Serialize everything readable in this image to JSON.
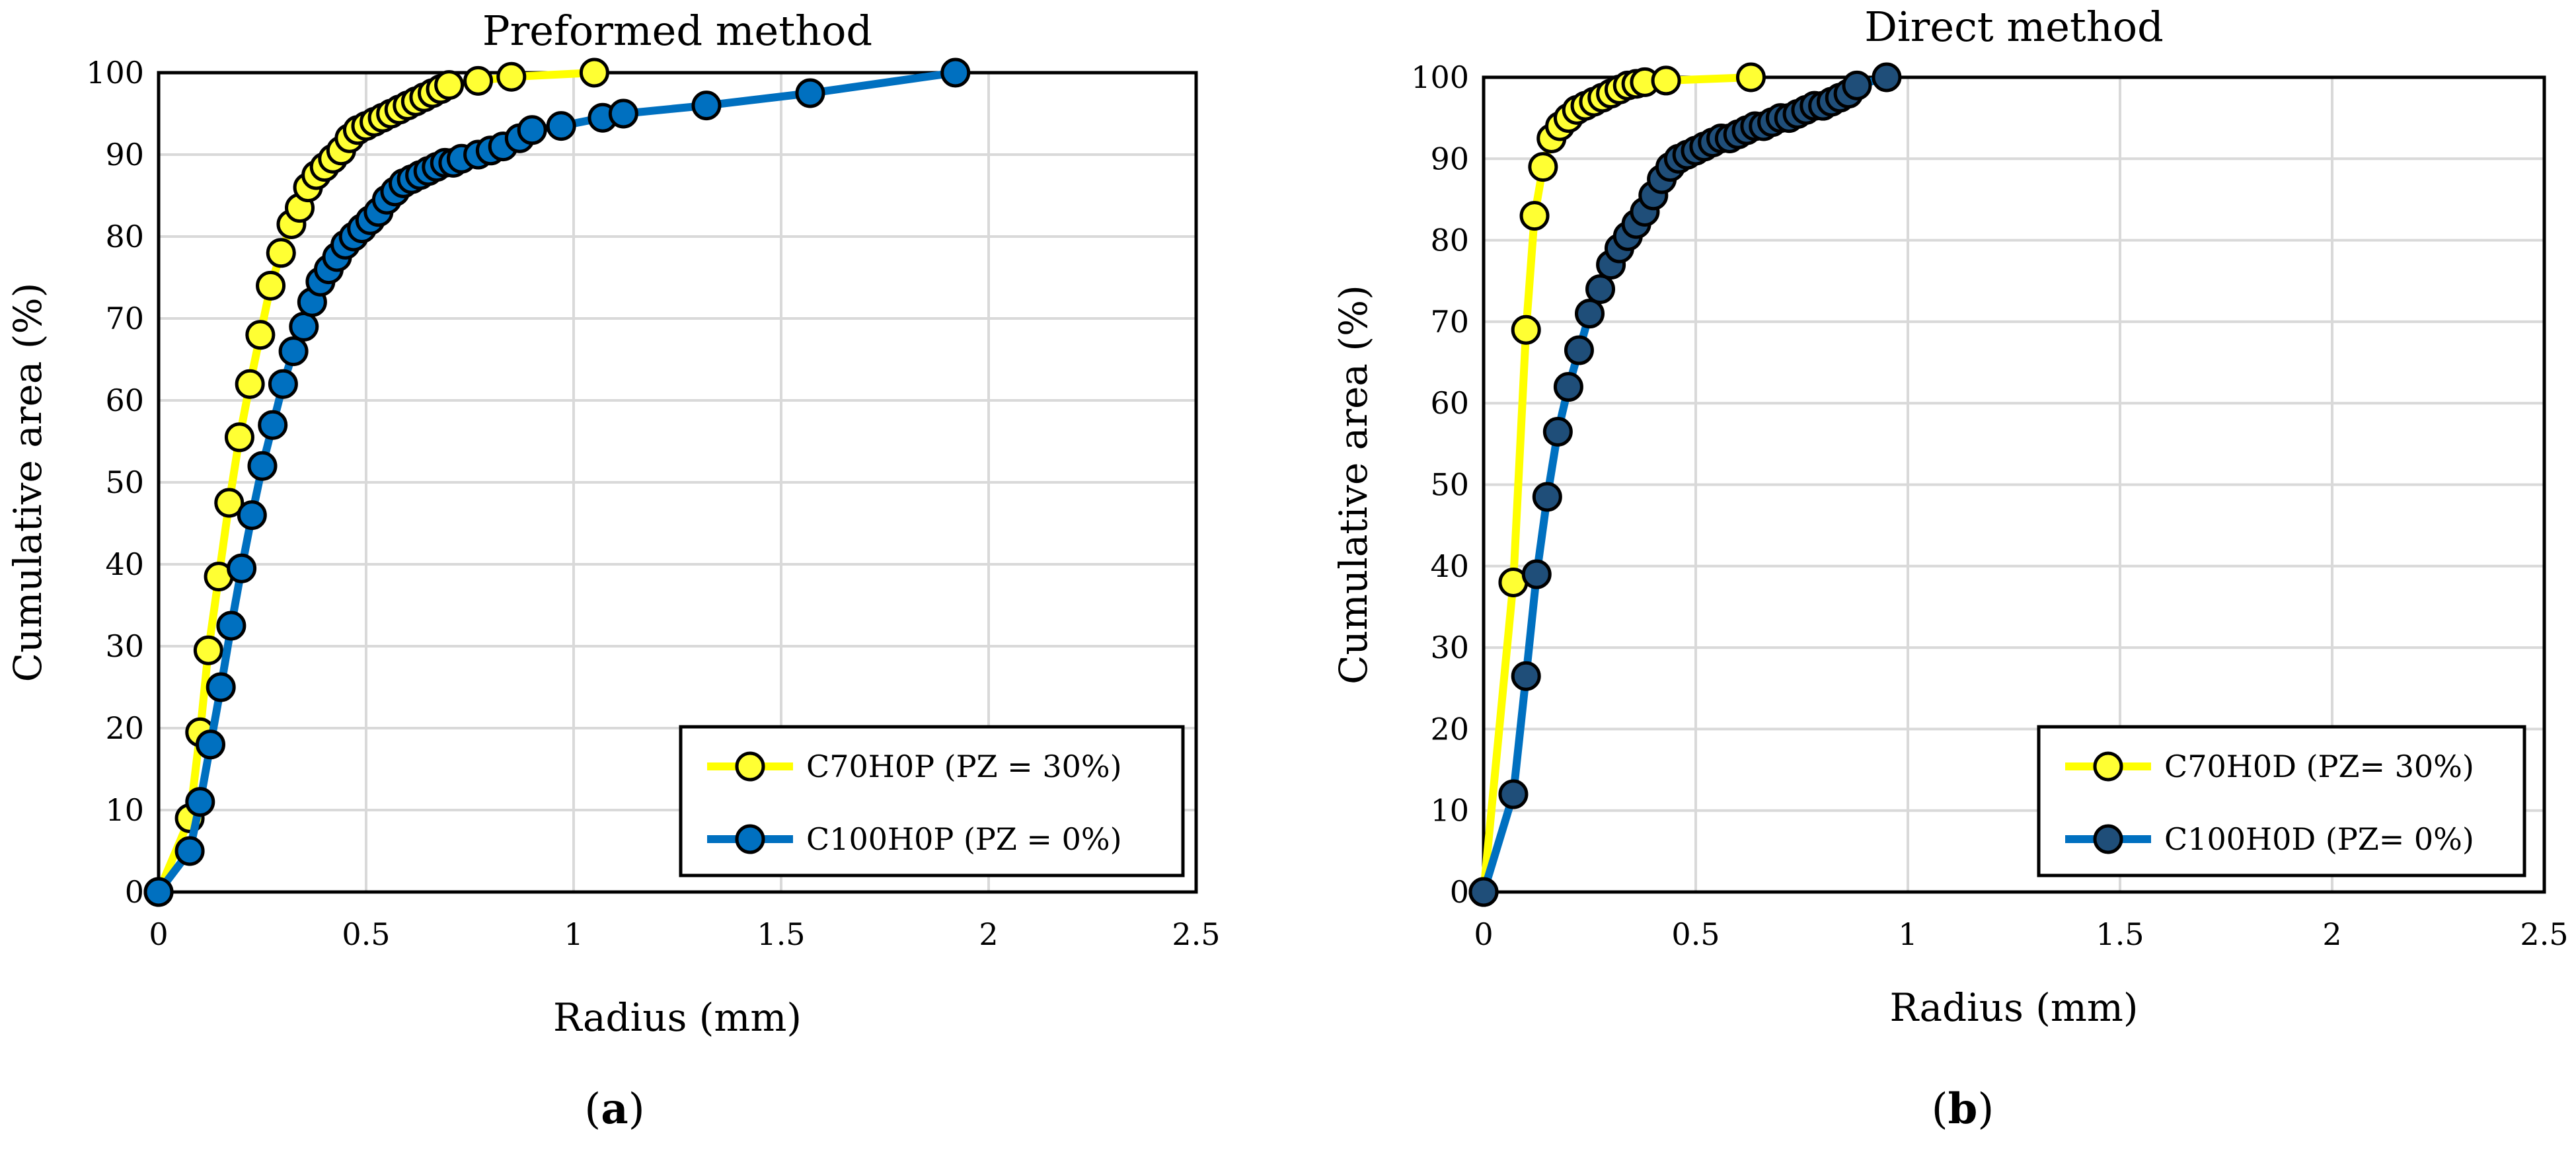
{
  "chart_data": [
    {
      "type": "line",
      "title": "Preformed method",
      "xlabel": "Radius (mm)",
      "ylabel": "Cumulative area (%)",
      "xlim": [
        0,
        2.5
      ],
      "ylim": [
        0,
        100
      ],
      "xticks": [
        0,
        0.5,
        1,
        1.5,
        2,
        2.5
      ],
      "xtick_labels": [
        "0",
        "0.5",
        "1",
        "1.5",
        "2",
        "2.5"
      ],
      "yticks": [
        0,
        10,
        20,
        30,
        40,
        50,
        60,
        70,
        80,
        90,
        100
      ],
      "ytick_labels": [
        "0",
        "10",
        "20",
        "30",
        "40",
        "50",
        "60",
        "70",
        "80",
        "90",
        "100"
      ],
      "grid": true,
      "legend_position": "bottom-right",
      "panel_label": "a",
      "series": [
        {
          "name": "C70H0P (PZ = 30%)",
          "line_color": "#FFFF00",
          "marker_color": "#FFFF33",
          "x": [
            0,
            0.075,
            0.1,
            0.12,
            0.145,
            0.17,
            0.195,
            0.22,
            0.245,
            0.27,
            0.295,
            0.32,
            0.34,
            0.36,
            0.38,
            0.4,
            0.42,
            0.44,
            0.46,
            0.48,
            0.5,
            0.52,
            0.54,
            0.56,
            0.58,
            0.6,
            0.62,
            0.64,
            0.66,
            0.68,
            0.7,
            0.77,
            0.85,
            1.05
          ],
          "y": [
            0,
            9,
            19.5,
            29.5,
            38.5,
            47.5,
            55.5,
            62,
            68,
            74,
            78,
            81.5,
            83.5,
            86,
            87.5,
            88.5,
            89.5,
            90.5,
            92,
            93,
            93.5,
            94,
            94.5,
            95,
            95.5,
            96,
            96.5,
            97,
            97.5,
            98,
            98.5,
            99,
            99.5,
            100
          ]
        },
        {
          "name": "C100H0P (PZ = 0%)",
          "line_color": "#0070C0",
          "marker_color": "#0070C0",
          "x": [
            0,
            0.075,
            0.1,
            0.125,
            0.15,
            0.175,
            0.2,
            0.225,
            0.25,
            0.275,
            0.3,
            0.325,
            0.35,
            0.37,
            0.39,
            0.41,
            0.43,
            0.45,
            0.47,
            0.49,
            0.51,
            0.53,
            0.55,
            0.57,
            0.59,
            0.61,
            0.63,
            0.65,
            0.67,
            0.69,
            0.71,
            0.73,
            0.77,
            0.8,
            0.83,
            0.87,
            0.9,
            0.97,
            1.07,
            1.12,
            1.32,
            1.57,
            1.92
          ],
          "y": [
            0,
            5,
            11,
            18,
            25,
            32.5,
            39.5,
            46,
            52,
            57,
            62,
            66,
            69,
            72,
            74.5,
            76,
            77.5,
            79,
            80,
            81,
            82,
            83,
            84.5,
            85.5,
            86.5,
            87,
            87.5,
            88,
            88.5,
            89,
            89,
            89.5,
            90,
            90.5,
            91,
            92,
            93,
            93.5,
            94.5,
            95,
            96,
            97.5,
            100
          ]
        }
      ]
    },
    {
      "type": "line",
      "title": "Direct method",
      "xlabel": "Radius (mm)",
      "ylabel": "Cumulative area (%)",
      "xlim": [
        0,
        2.5
      ],
      "ylim": [
        0,
        100
      ],
      "xticks": [
        0,
        0.5,
        1,
        1.5,
        2,
        2.5
      ],
      "xtick_labels": [
        "0",
        "0.5",
        "1",
        "1.5",
        "2",
        "2.5"
      ],
      "yticks": [
        0,
        10,
        20,
        30,
        40,
        50,
        60,
        70,
        80,
        90,
        100
      ],
      "ytick_labels": [
        "0",
        "10",
        "20",
        "30",
        "40",
        "50",
        "60",
        "70",
        "80",
        "90",
        "100"
      ],
      "grid": true,
      "legend_position": "bottom-right",
      "panel_label": "b",
      "series": [
        {
          "name": "C70H0D (PZ= 30%)",
          "line_color": "#FFFF00",
          "marker_color": "#FFFF33",
          "x": [
            0,
            0.07,
            0.1,
            0.12,
            0.14,
            0.16,
            0.18,
            0.2,
            0.22,
            0.24,
            0.26,
            0.28,
            0.3,
            0.32,
            0.34,
            0.36,
            0.38,
            0.43,
            0.63
          ],
          "y": [
            0,
            38,
            69,
            83,
            89,
            92.5,
            94,
            95,
            96,
            96.5,
            97,
            97.5,
            98,
            98.5,
            99,
            99.2,
            99.4,
            99.6,
            100
          ]
        },
        {
          "name": "C100H0D (PZ= 0%)",
          "line_color": "#0070C0",
          "marker_color": "#1F4E79",
          "x": [
            0,
            0.07,
            0.1,
            0.125,
            0.15,
            0.175,
            0.2,
            0.225,
            0.25,
            0.275,
            0.3,
            0.32,
            0.34,
            0.36,
            0.38,
            0.4,
            0.42,
            0.44,
            0.46,
            0.48,
            0.5,
            0.52,
            0.54,
            0.56,
            0.58,
            0.6,
            0.62,
            0.64,
            0.66,
            0.68,
            0.7,
            0.72,
            0.74,
            0.76,
            0.78,
            0.8,
            0.82,
            0.84,
            0.86,
            0.88,
            0.95
          ],
          "y": [
            0,
            12,
            26.5,
            39,
            48.5,
            56.5,
            62,
            66.5,
            71,
            74,
            77,
            79,
            80.5,
            82,
            83.5,
            85.5,
            87.5,
            89,
            90,
            90.5,
            91,
            91.5,
            92,
            92.5,
            92.5,
            93,
            93.5,
            94,
            94,
            94.5,
            95,
            95,
            95.5,
            96,
            96.5,
            96.5,
            97,
            97.5,
            98,
            99,
            100
          ]
        }
      ]
    }
  ]
}
